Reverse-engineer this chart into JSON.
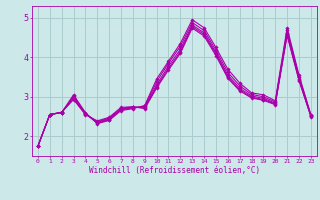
{
  "xlabel": "Windchill (Refroidissement éolien,°C)",
  "xlim": [
    -0.5,
    23.5
  ],
  "ylim": [
    1.5,
    5.3
  ],
  "yticks": [
    2,
    3,
    4,
    5
  ],
  "xticks": [
    0,
    1,
    2,
    3,
    4,
    5,
    6,
    7,
    8,
    9,
    10,
    11,
    12,
    13,
    14,
    15,
    16,
    17,
    18,
    19,
    20,
    21,
    22,
    23
  ],
  "bg_color": "#cce8e8",
  "grid_color": "#aacccc",
  "line_color": "#aa00aa",
  "lines": [
    [
      1.75,
      2.55,
      2.6,
      3.05,
      2.6,
      2.32,
      2.4,
      2.65,
      2.7,
      2.78,
      3.45,
      3.9,
      4.35,
      4.95,
      4.75,
      4.25,
      3.7,
      3.35,
      3.1,
      3.05,
      2.9,
      4.75,
      3.55,
      2.55
    ],
    [
      1.75,
      2.55,
      2.6,
      3.02,
      2.58,
      2.33,
      2.42,
      2.67,
      2.72,
      2.76,
      3.38,
      3.85,
      4.28,
      4.88,
      4.68,
      4.18,
      3.62,
      3.28,
      3.06,
      3.0,
      2.87,
      4.68,
      3.5,
      2.53
    ],
    [
      1.75,
      2.55,
      2.6,
      2.98,
      2.57,
      2.35,
      2.44,
      2.69,
      2.73,
      2.74,
      3.3,
      3.78,
      4.2,
      4.82,
      4.62,
      4.12,
      3.55,
      3.22,
      3.02,
      2.96,
      2.84,
      4.62,
      3.46,
      2.52
    ],
    [
      1.75,
      2.55,
      2.61,
      2.95,
      2.56,
      2.37,
      2.46,
      2.71,
      2.74,
      2.72,
      3.25,
      3.72,
      4.14,
      4.78,
      4.58,
      4.08,
      3.5,
      3.18,
      2.99,
      2.93,
      2.82,
      4.58,
      3.43,
      2.51
    ],
    [
      1.75,
      2.55,
      2.61,
      2.93,
      2.55,
      2.39,
      2.48,
      2.73,
      2.75,
      2.7,
      3.22,
      3.68,
      4.1,
      4.74,
      4.54,
      4.04,
      3.47,
      3.15,
      2.97,
      2.91,
      2.8,
      4.55,
      3.41,
      2.5
    ]
  ]
}
